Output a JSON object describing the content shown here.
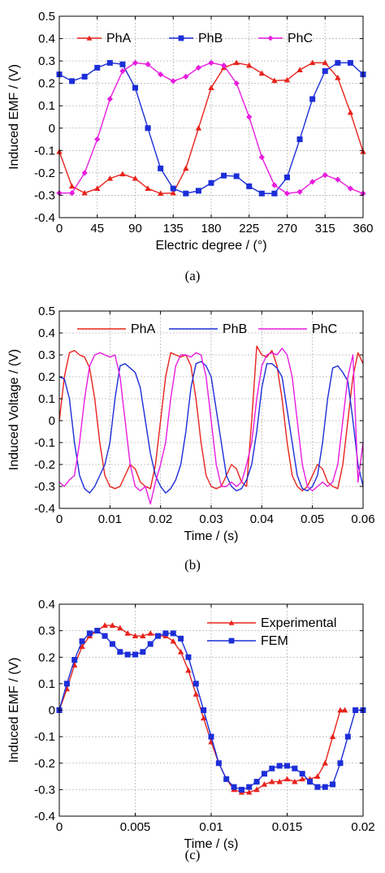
{
  "chart_data": [
    {
      "type": "line",
      "caption": "(a)",
      "xlabel": "Electric degree / (°)",
      "ylabel": "Induced EMF / (V)",
      "xlim": [
        0,
        360
      ],
      "ylim": [
        -0.4,
        0.5
      ],
      "xticks": [
        0,
        45,
        90,
        135,
        180,
        225,
        270,
        315,
        360
      ],
      "xtick_labels": [
        "0",
        "45",
        "90",
        "135",
        "180",
        "225",
        "270",
        "315",
        "360"
      ],
      "yticks": [
        -0.4,
        -0.3,
        -0.2,
        -0.1,
        0,
        0.1,
        0.2,
        0.3,
        0.4,
        0.5
      ],
      "ytick_labels": [
        "-0.4",
        "-0.3",
        "-0.2",
        "-0.1",
        "0",
        "0.1",
        "0.2",
        "0.3",
        "0.4",
        "0.5"
      ],
      "grid": true,
      "legend_placement": "top (horizontal)",
      "series": [
        {
          "name": "PhA",
          "color": "#e8231c",
          "marker": "triangle",
          "x": [
            0,
            15,
            30,
            45,
            60,
            75,
            90,
            105,
            120,
            135,
            150,
            165,
            180,
            195,
            210,
            225,
            240,
            255,
            270,
            285,
            300,
            315,
            330,
            345,
            360
          ],
          "values": [
            -0.105,
            -0.26,
            -0.29,
            -0.27,
            -0.225,
            -0.205,
            -0.225,
            -0.27,
            -0.292,
            -0.29,
            -0.18,
            0.0,
            0.18,
            0.27,
            0.292,
            0.28,
            0.245,
            0.212,
            0.215,
            0.26,
            0.292,
            0.292,
            0.225,
            0.07,
            -0.105
          ]
        },
        {
          "name": "PhB",
          "color": "#1c2ed8",
          "marker": "square",
          "x": [
            0,
            15,
            30,
            45,
            60,
            75,
            90,
            105,
            120,
            135,
            150,
            165,
            180,
            195,
            210,
            225,
            240,
            255,
            270,
            285,
            300,
            315,
            330,
            345,
            360
          ],
          "values": [
            0.24,
            0.21,
            0.23,
            0.27,
            0.292,
            0.285,
            0.18,
            0.0,
            -0.18,
            -0.27,
            -0.292,
            -0.28,
            -0.245,
            -0.212,
            -0.215,
            -0.26,
            -0.292,
            -0.292,
            -0.22,
            -0.05,
            0.13,
            0.255,
            0.292,
            0.292,
            0.24
          ]
        },
        {
          "name": "PhC",
          "color": "#e81ce0",
          "marker": "diamond",
          "x": [
            0,
            15,
            30,
            45,
            60,
            75,
            90,
            105,
            120,
            135,
            150,
            165,
            180,
            195,
            210,
            225,
            240,
            255,
            270,
            285,
            300,
            315,
            330,
            345,
            360
          ],
          "values": [
            -0.29,
            -0.29,
            -0.2,
            -0.05,
            0.13,
            0.255,
            0.292,
            0.285,
            0.24,
            0.21,
            0.23,
            0.27,
            0.292,
            0.28,
            0.2,
            0.05,
            -0.13,
            -0.255,
            -0.292,
            -0.285,
            -0.24,
            -0.21,
            -0.23,
            -0.27,
            -0.292
          ]
        }
      ]
    },
    {
      "type": "line",
      "caption": "(b)",
      "xlabel": "Time / (s)",
      "ylabel": "Induced Voltage / (V)",
      "xlim": [
        0,
        0.06
      ],
      "ylim": [
        -0.4,
        0.5
      ],
      "xticks": [
        0,
        0.01,
        0.02,
        0.03,
        0.04,
        0.05,
        0.06
      ],
      "xtick_labels": [
        "0",
        "0.01",
        "0.02",
        "0.03",
        "0.04",
        "0.05",
        "0.06"
      ],
      "yticks": [
        -0.4,
        -0.3,
        -0.2,
        -0.1,
        0,
        0.1,
        0.2,
        0.3,
        0.4,
        0.5
      ],
      "ytick_labels": [
        "-0.4",
        "-0.3",
        "-0.2",
        "-0.1",
        "0",
        "0.1",
        "0.2",
        "0.3",
        "0.4",
        "0.5"
      ],
      "grid": true,
      "legend_placement": "top (horizontal)",
      "series": [
        {
          "name": "PhA",
          "color": "#e8231c",
          "x": [
            0,
            0.001,
            0.002,
            0.003,
            0.004,
            0.005,
            0.006,
            0.007,
            0.008,
            0.009,
            0.01,
            0.011,
            0.012,
            0.013,
            0.014,
            0.015,
            0.016,
            0.017,
            0.018,
            0.019,
            0.02,
            0.021,
            0.022,
            0.023,
            0.024,
            0.025,
            0.026,
            0.027,
            0.028,
            0.029,
            0.03,
            0.031,
            0.032,
            0.033,
            0.034,
            0.035,
            0.036,
            0.037,
            0.038,
            0.039,
            0.04,
            0.041,
            0.042,
            0.043,
            0.044,
            0.045,
            0.046,
            0.047,
            0.048,
            0.049,
            0.05,
            0.051,
            0.052,
            0.053,
            0.054,
            0.055,
            0.056,
            0.057,
            0.058,
            0.059,
            0.06
          ],
          "values": [
            0.0,
            0.2,
            0.31,
            0.32,
            0.3,
            0.29,
            0.24,
            0.1,
            -0.1,
            -0.25,
            -0.3,
            -0.31,
            -0.3,
            -0.25,
            -0.2,
            -0.22,
            -0.28,
            -0.3,
            -0.31,
            -0.2,
            0.0,
            0.2,
            0.31,
            0.3,
            0.29,
            0.3,
            0.25,
            0.1,
            -0.1,
            -0.25,
            -0.3,
            -0.31,
            -0.3,
            -0.25,
            -0.2,
            -0.22,
            -0.28,
            -0.3,
            0.0,
            0.34,
            0.3,
            0.29,
            0.32,
            0.25,
            0.1,
            -0.1,
            -0.25,
            -0.3,
            -0.32,
            -0.3,
            -0.25,
            -0.2,
            -0.22,
            -0.28,
            -0.3,
            -0.31,
            -0.2,
            0.0,
            0.2,
            0.31,
            0.26
          ]
        },
        {
          "name": "PhB",
          "color": "#1c2ed8",
          "x": [
            0,
            0.001,
            0.002,
            0.003,
            0.004,
            0.005,
            0.006,
            0.007,
            0.008,
            0.009,
            0.01,
            0.011,
            0.012,
            0.013,
            0.014,
            0.015,
            0.016,
            0.017,
            0.018,
            0.019,
            0.02,
            0.021,
            0.022,
            0.023,
            0.024,
            0.025,
            0.026,
            0.027,
            0.028,
            0.029,
            0.03,
            0.031,
            0.032,
            0.033,
            0.034,
            0.035,
            0.036,
            0.037,
            0.038,
            0.039,
            0.04,
            0.041,
            0.042,
            0.043,
            0.044,
            0.045,
            0.046,
            0.047,
            0.048,
            0.049,
            0.05,
            0.051,
            0.052,
            0.053,
            0.054,
            0.055,
            0.056,
            0.057,
            0.058,
            0.059,
            0.06
          ],
          "values": [
            0.2,
            0.19,
            0.1,
            -0.1,
            -0.25,
            -0.31,
            -0.33,
            -0.3,
            -0.25,
            -0.2,
            -0.1,
            0.1,
            0.25,
            0.26,
            0.24,
            0.22,
            0.15,
            0.0,
            -0.15,
            -0.25,
            -0.3,
            -0.33,
            -0.31,
            -0.27,
            -0.2,
            -0.05,
            0.15,
            0.26,
            0.27,
            0.25,
            0.2,
            0.05,
            -0.1,
            -0.25,
            -0.3,
            -0.32,
            -0.31,
            -0.27,
            -0.2,
            -0.05,
            0.15,
            0.26,
            0.26,
            0.24,
            0.2,
            0.05,
            -0.1,
            -0.25,
            -0.31,
            -0.32,
            -0.3,
            -0.25,
            -0.1,
            0.1,
            0.24,
            0.25,
            0.22,
            0.18,
            0.0,
            -0.2,
            -0.3
          ]
        },
        {
          "name": "PhC",
          "color": "#e81ce0",
          "x": [
            0,
            0.001,
            0.002,
            0.003,
            0.004,
            0.005,
            0.006,
            0.007,
            0.008,
            0.009,
            0.01,
            0.011,
            0.012,
            0.013,
            0.014,
            0.015,
            0.016,
            0.017,
            0.018,
            0.019,
            0.02,
            0.021,
            0.022,
            0.023,
            0.024,
            0.025,
            0.026,
            0.027,
            0.028,
            0.029,
            0.03,
            0.031,
            0.032,
            0.033,
            0.034,
            0.035,
            0.036,
            0.037,
            0.038,
            0.039,
            0.04,
            0.041,
            0.042,
            0.043,
            0.044,
            0.045,
            0.046,
            0.047,
            0.048,
            0.049,
            0.05,
            0.051,
            0.052,
            0.053,
            0.054,
            0.055,
            0.056,
            0.057,
            0.058,
            0.059,
            0.06
          ],
          "values": [
            -0.28,
            -0.3,
            -0.27,
            -0.25,
            -0.1,
            0.1,
            0.25,
            0.3,
            0.31,
            0.3,
            0.29,
            0.3,
            0.2,
            0.0,
            -0.2,
            -0.3,
            -0.32,
            -0.3,
            -0.38,
            -0.28,
            -0.2,
            -0.1,
            0.1,
            0.25,
            0.3,
            0.3,
            0.29,
            0.31,
            0.3,
            0.2,
            0.0,
            -0.2,
            -0.3,
            -0.3,
            -0.28,
            -0.3,
            -0.28,
            -0.2,
            -0.1,
            0.1,
            0.25,
            0.3,
            0.31,
            0.3,
            0.33,
            0.3,
            0.2,
            0.0,
            -0.2,
            -0.3,
            -0.32,
            -0.3,
            -0.28,
            -0.3,
            -0.28,
            -0.2,
            0.0,
            0.2,
            0.3,
            -0.28,
            -0.1
          ]
        }
      ]
    },
    {
      "type": "line",
      "caption": "(c)",
      "xlabel": "Time / (s)",
      "ylabel": "Induced EMF / (V)",
      "xlim": [
        0,
        0.02
      ],
      "ylim": [
        -0.4,
        0.4
      ],
      "xticks": [
        0,
        0.005,
        0.01,
        0.015,
        0.02
      ],
      "xtick_labels": [
        "0",
        "0.005",
        "0.01",
        "0.015",
        "0.02"
      ],
      "yticks": [
        -0.4,
        -0.3,
        -0.2,
        -0.1,
        0,
        0.1,
        0.2,
        0.3,
        0.4
      ],
      "ytick_labels": [
        "-0.4",
        "-0.3",
        "-0.2",
        "-0.1",
        "0",
        "0.1",
        "0.2",
        "0.3",
        "0.4"
      ],
      "grid": true,
      "legend_placement": "top-right",
      "series": [
        {
          "name": "Experimental",
          "color": "#e8231c",
          "marker": "triangle",
          "x": [
            0,
            0.0005,
            0.001,
            0.0015,
            0.002,
            0.0025,
            0.003,
            0.0035,
            0.004,
            0.0045,
            0.005,
            0.0055,
            0.006,
            0.0065,
            0.007,
            0.0075,
            0.008,
            0.0085,
            0.009,
            0.0095,
            0.01,
            0.0105,
            0.011,
            0.0115,
            0.012,
            0.0125,
            0.013,
            0.0135,
            0.014,
            0.0145,
            0.015,
            0.0155,
            0.016,
            0.0165,
            0.017,
            0.0175,
            0.018,
            0.0185,
            0.0188
          ],
          "values": [
            0.0,
            0.08,
            0.17,
            0.24,
            0.28,
            0.3,
            0.32,
            0.32,
            0.31,
            0.29,
            0.28,
            0.28,
            0.29,
            0.28,
            0.28,
            0.26,
            0.22,
            0.15,
            0.06,
            -0.03,
            -0.12,
            -0.2,
            -0.26,
            -0.3,
            -0.31,
            -0.31,
            -0.3,
            -0.28,
            -0.27,
            -0.27,
            -0.26,
            -0.27,
            -0.26,
            -0.26,
            -0.25,
            -0.2,
            -0.1,
            0.0,
            0.0
          ]
        },
        {
          "name": "FEM",
          "color": "#1c2ed8",
          "marker": "square",
          "x": [
            0,
            0.0005,
            0.001,
            0.0015,
            0.002,
            0.0025,
            0.003,
            0.0035,
            0.004,
            0.0045,
            0.005,
            0.0055,
            0.006,
            0.0065,
            0.007,
            0.0075,
            0.008,
            0.0085,
            0.009,
            0.0095,
            0.01,
            0.0105,
            0.011,
            0.0115,
            0.012,
            0.0125,
            0.013,
            0.0135,
            0.014,
            0.0145,
            0.015,
            0.0155,
            0.016,
            0.0165,
            0.017,
            0.0175,
            0.018,
            0.0185,
            0.019,
            0.0195,
            0.02
          ],
          "values": [
            0.0,
            0.1,
            0.19,
            0.26,
            0.29,
            0.3,
            0.28,
            0.25,
            0.22,
            0.21,
            0.21,
            0.22,
            0.25,
            0.28,
            0.29,
            0.29,
            0.27,
            0.2,
            0.1,
            0.0,
            -0.1,
            -0.2,
            -0.26,
            -0.29,
            -0.3,
            -0.29,
            -0.27,
            -0.24,
            -0.22,
            -0.21,
            -0.21,
            -0.22,
            -0.24,
            -0.27,
            -0.29,
            -0.29,
            -0.28,
            -0.2,
            -0.1,
            0.0,
            0.0
          ]
        }
      ]
    }
  ]
}
